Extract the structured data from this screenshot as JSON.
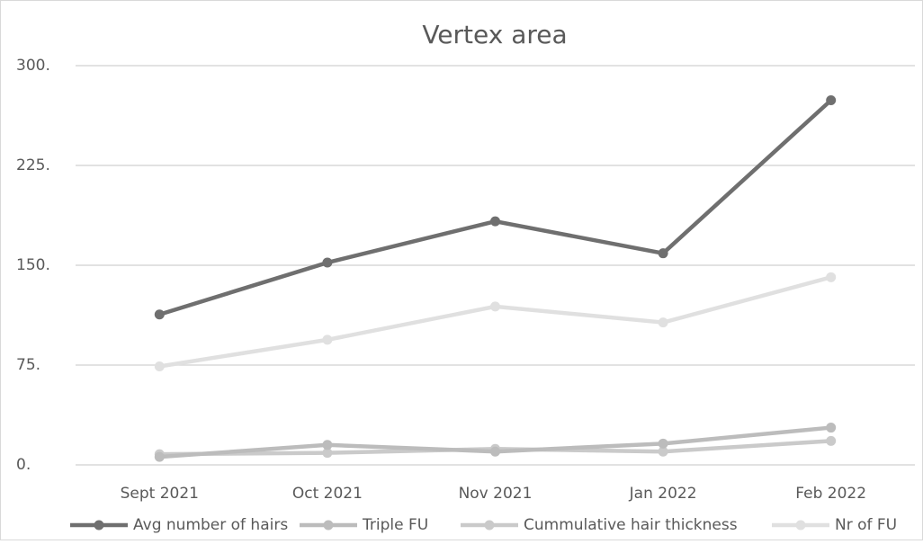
{
  "chart_data": {
    "type": "line",
    "title": "Vertex area",
    "categories": [
      "Sept 2021",
      "Oct 2021",
      "Nov 2021",
      "Jan 2022",
      "Feb 2022"
    ],
    "series": [
      {
        "name": "Avg number of hairs",
        "color": "#6f6f6f",
        "values": [
          113,
          152,
          183,
          159,
          274
        ]
      },
      {
        "name": "Triple FU",
        "color": "#bcbcbc",
        "values": [
          6,
          15,
          10,
          16,
          28
        ]
      },
      {
        "name": "Cummulative hair thickness",
        "color": "#cacaca",
        "values": [
          8,
          9,
          12,
          10,
          18
        ]
      },
      {
        "name": "Nr of FU",
        "color": "#e0e0e0",
        "values": [
          74,
          94,
          119,
          107,
          141
        ]
      }
    ],
    "ylim": [
      0,
      300
    ],
    "yticks": [
      {
        "value": 0,
        "label": "0."
      },
      {
        "value": 75,
        "label": "75."
      },
      {
        "value": 150,
        "label": "150."
      },
      {
        "value": 225,
        "label": "225."
      },
      {
        "value": 300,
        "label": "300."
      }
    ],
    "grid": true,
    "legend": "bottom"
  }
}
